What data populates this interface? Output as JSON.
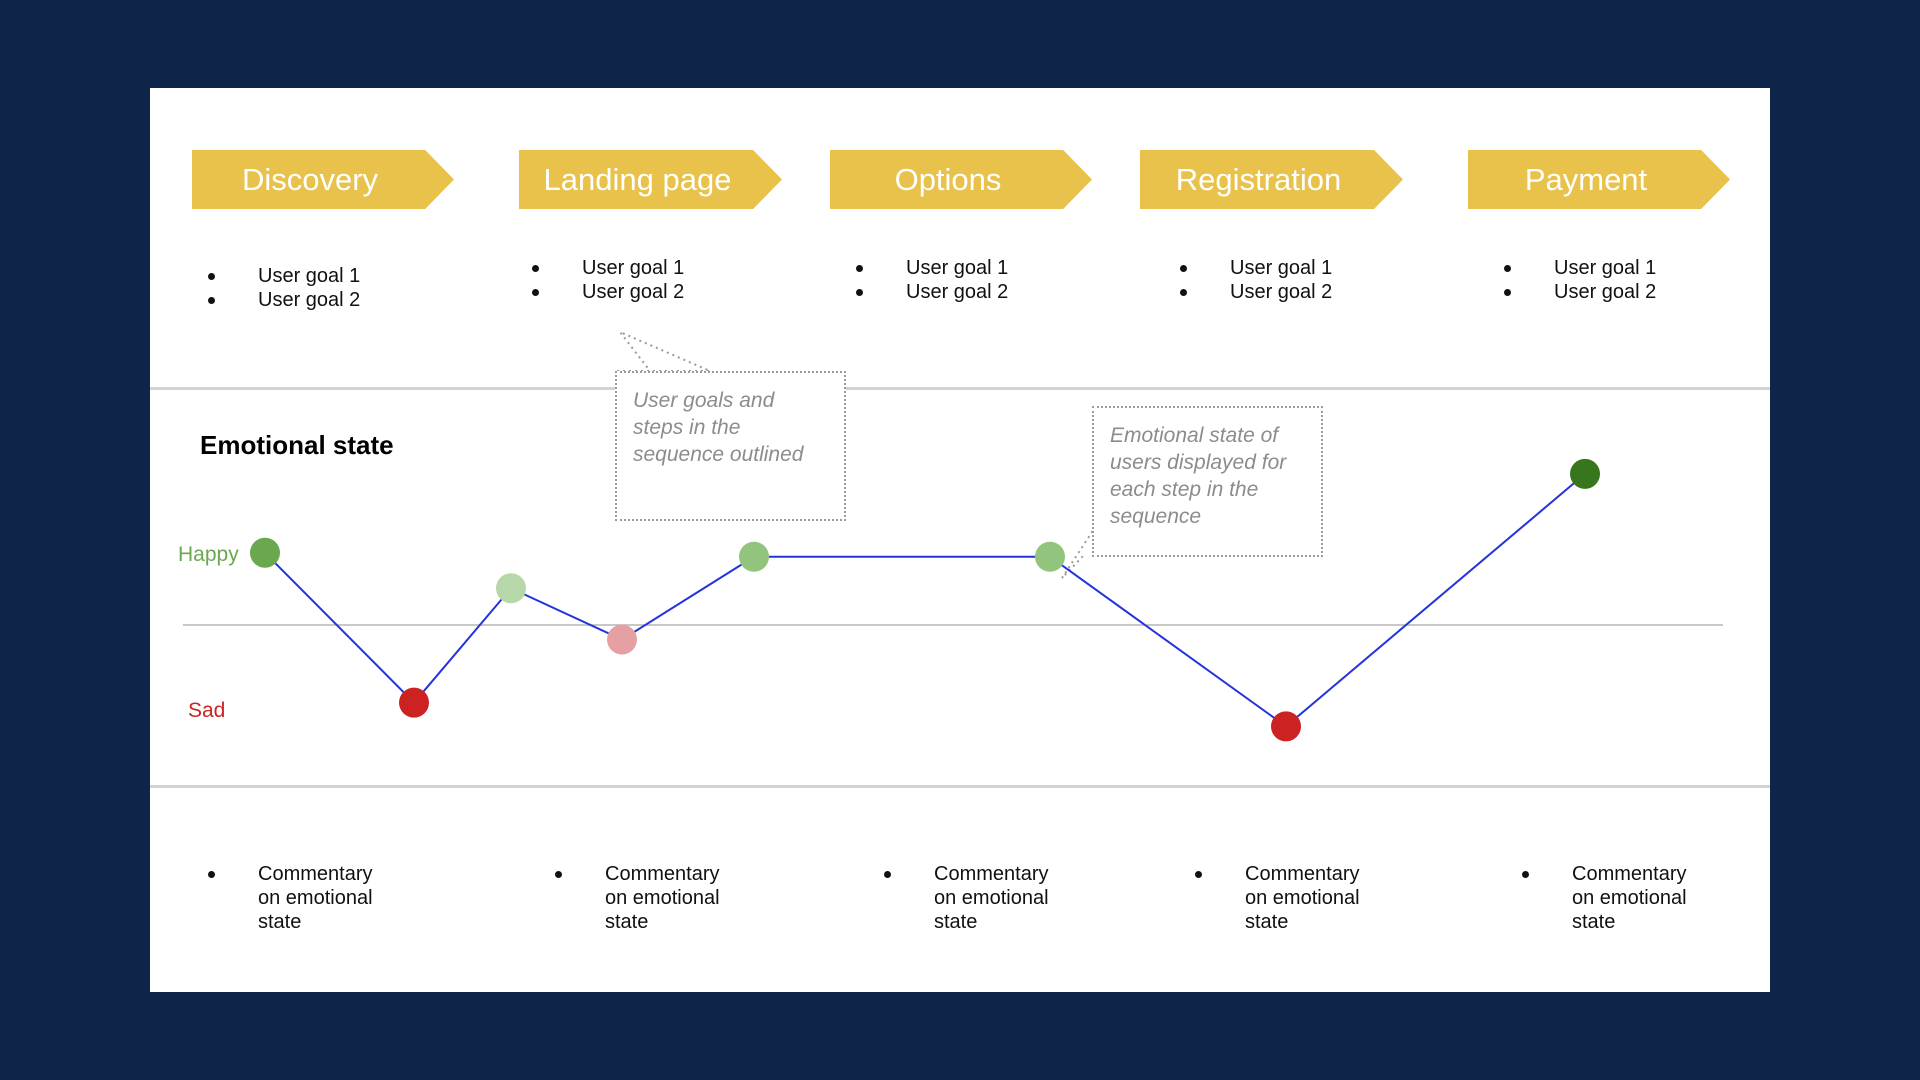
{
  "steps": [
    {
      "label": "Discovery",
      "goals": [
        "User goal 1",
        "User goal 2"
      ],
      "commentary": "Commentary on emotional state"
    },
    {
      "label": "Landing page",
      "goals": [
        "User goal 1",
        "User goal 2"
      ],
      "commentary": "Commentary on emotional state"
    },
    {
      "label": "Options",
      "goals": [
        "User goal 1",
        "User goal 2"
      ],
      "commentary": "Commentary on emotional state"
    },
    {
      "label": "Registration",
      "goals": [
        "User goal 1",
        "User goal 2"
      ],
      "commentary": "Commentary on emotional state"
    },
    {
      "label": "Payment",
      "goals": [
        "User goal 1",
        "User goal 2"
      ],
      "commentary": "Commentary on emotional state"
    }
  ],
  "emotional": {
    "title": "Emotional state",
    "happy_label": "Happy",
    "sad_label": "Sad"
  },
  "callouts": {
    "goals_note": "User goals and steps in the sequence outlined",
    "emotion_note": "Emotional state of users displayed for each step in the sequence"
  },
  "colors": {
    "background": "#0e2448",
    "arrow": "#e8c24a",
    "line": "#2233dd",
    "happy_text": "#6aa84f",
    "sad_text": "#cc2222"
  },
  "chart_data": {
    "type": "line",
    "series": [
      {
        "values": [
          0.9,
          -1.0,
          0.45,
          -0.2,
          0.85,
          0.85,
          -1.3,
          1.9
        ],
        "point_colors": [
          "#6aa84f",
          "#cc2222",
          "#b6d7a8",
          "#e6a0a3",
          "#93c47d",
          "#93c47d",
          "#cc2222",
          "#38761d"
        ]
      }
    ],
    "ylim": [
      -1.6,
      2.0
    ]
  }
}
